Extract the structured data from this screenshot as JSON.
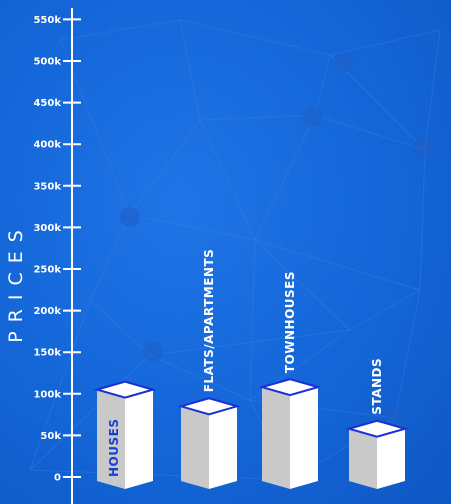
{
  "chart_data": {
    "type": "bar",
    "title": "",
    "xlabel": "",
    "ylabel": "PRICES",
    "ylim": [
      0,
      560000
    ],
    "yticks": [
      {
        "value": 0,
        "label": "0"
      },
      {
        "value": 50000,
        "label": "50k"
      },
      {
        "value": 100000,
        "label": "100k"
      },
      {
        "value": 150000,
        "label": "150k"
      },
      {
        "value": 200000,
        "label": "200k"
      },
      {
        "value": 250000,
        "label": "250k"
      },
      {
        "value": 300000,
        "label": "300k"
      },
      {
        "value": 350000,
        "label": "350k"
      },
      {
        "value": 400000,
        "label": "400k"
      },
      {
        "value": 450000,
        "label": "450k"
      },
      {
        "value": 500000,
        "label": "500k"
      },
      {
        "value": 550000,
        "label": "550k"
      }
    ],
    "categories": [
      "HOUSES",
      "FLATS/APARTMENTS",
      "TOWNHOUSES",
      "STANDS"
    ],
    "values": [
      105000,
      85000,
      108000,
      58000
    ],
    "grid": false,
    "colors": {
      "background": "#1466d8",
      "bar_front": "#ffffff",
      "bar_side": "#c9c9c9",
      "bar_top": "#ffffff",
      "bar_top_border": "#1a2fd6",
      "axis": "#ffffff",
      "label_on_bar": "#1a3fd0",
      "label_above_bar": "#ffffff"
    }
  }
}
